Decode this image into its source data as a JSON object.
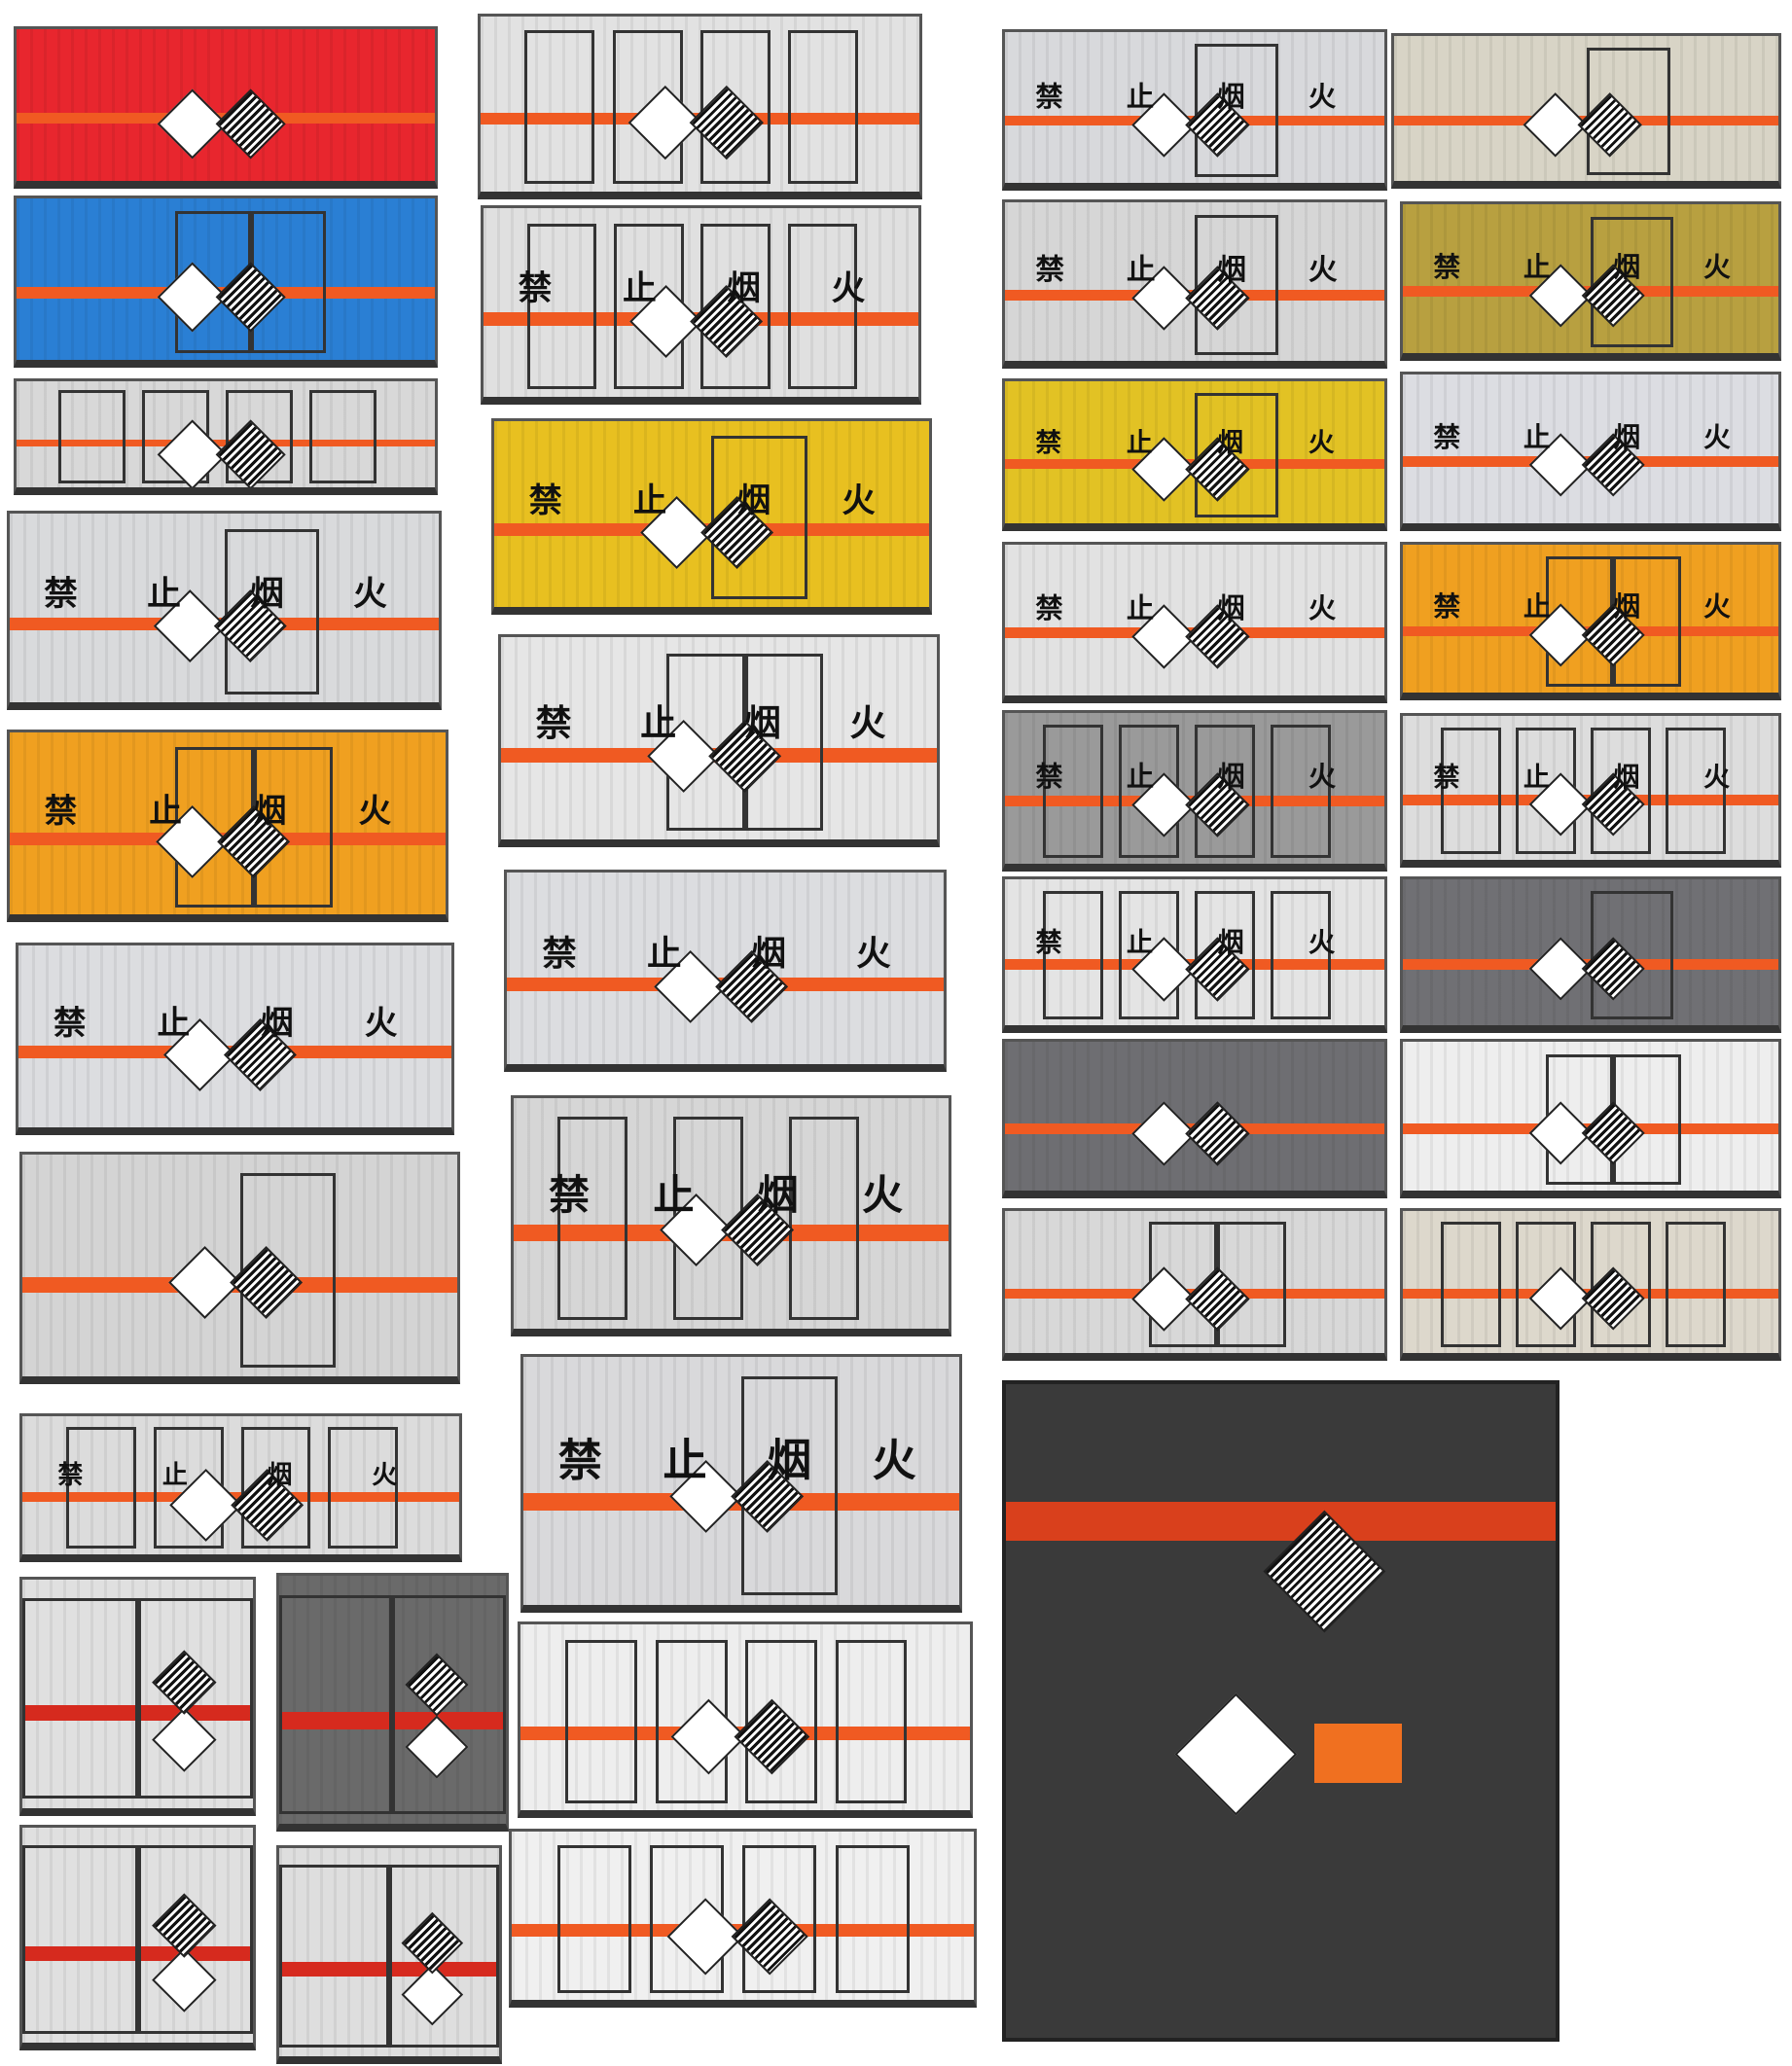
{
  "sign_chars": [
    "禁",
    "止",
    "烟",
    "火"
  ],
  "colors": {
    "stripe": "#f05a22",
    "red_stripe": "#d62a1e"
  },
  "panels": [
    {
      "color": "#e8262e",
      "text": false,
      "doors": 0
    },
    {
      "color": "#2a7fd4",
      "text": false,
      "doors": 2
    },
    {
      "color": "#d8d8d8",
      "text": false,
      "doors": 4
    },
    {
      "color": "#d9dadc",
      "text": true,
      "doors": 1
    },
    {
      "color": "#f0a020",
      "text": true,
      "doors": 2
    },
    {
      "color": "#dcdde0",
      "text": true,
      "doors": 0
    },
    {
      "color": "#d4d4d4",
      "text": false,
      "doors": 1
    },
    {
      "color": "#dcdcdc",
      "text": true,
      "doors": 4
    },
    {
      "color": "#e0e0e0",
      "text": false,
      "doors": 2,
      "rear": true
    },
    {
      "color": "#6a6a6a",
      "text": false,
      "doors": 2,
      "rear": true
    },
    {
      "color": "#e0e0e0",
      "text": false,
      "doors": 2,
      "rear": true
    },
    {
      "color": "#dedede",
      "text": false,
      "doors": 2,
      "rear": true
    },
    {
      "color": "#e2e2e2",
      "text": false,
      "doors": 4
    },
    {
      "color": "#e0e0e0",
      "text": true,
      "doors": 4
    },
    {
      "color": "#e8c020",
      "text": true,
      "doors": 1
    },
    {
      "color": "#e6e6e6",
      "text": true,
      "doors": 2
    },
    {
      "color": "#dcdde0",
      "text": true,
      "doors": 0
    },
    {
      "color": "#d6d6d6",
      "text": true,
      "doors": 3
    },
    {
      "color": "#d9d9db",
      "text": true,
      "doors": 1
    },
    {
      "color": "#eeeeee",
      "text": false,
      "doors": 4
    },
    {
      "color": "#f0f0f0",
      "text": false,
      "doors": 4
    },
    {
      "color": "#d8d9dc",
      "text": true,
      "doors": 1
    },
    {
      "color": "#d6d6d6",
      "text": true,
      "doors": 1
    },
    {
      "color": "#e2c224",
      "text": true,
      "doors": 1
    },
    {
      "color": "#e2e2e2",
      "text": true,
      "doors": 0
    },
    {
      "color": "#9a9a9a",
      "text": true,
      "doors": 4
    },
    {
      "color": "#e4e4e4",
      "text": true,
      "doors": 4
    },
    {
      "color": "#6e6e72",
      "text": false,
      "doors": 0
    },
    {
      "color": "#d8d8d8",
      "text": false,
      "doors": 2
    },
    {
      "color": "#d8d4c6",
      "text": false,
      "doors": 1
    },
    {
      "color": "#b8a040",
      "text": true,
      "doors": 1
    },
    {
      "color": "#dcdde2",
      "text": true,
      "doors": 0
    },
    {
      "color": "#f0a020",
      "text": true,
      "doors": 2
    },
    {
      "color": "#dddddd",
      "text": true,
      "doors": 4
    },
    {
      "color": "#707074",
      "text": false,
      "doors": 1
    },
    {
      "color": "#eeeeee",
      "text": false,
      "doors": 2
    },
    {
      "color": "#ddd8cc",
      "text": false,
      "doors": 4
    }
  ],
  "rear_truck": {
    "color": "#3a3a3a"
  }
}
